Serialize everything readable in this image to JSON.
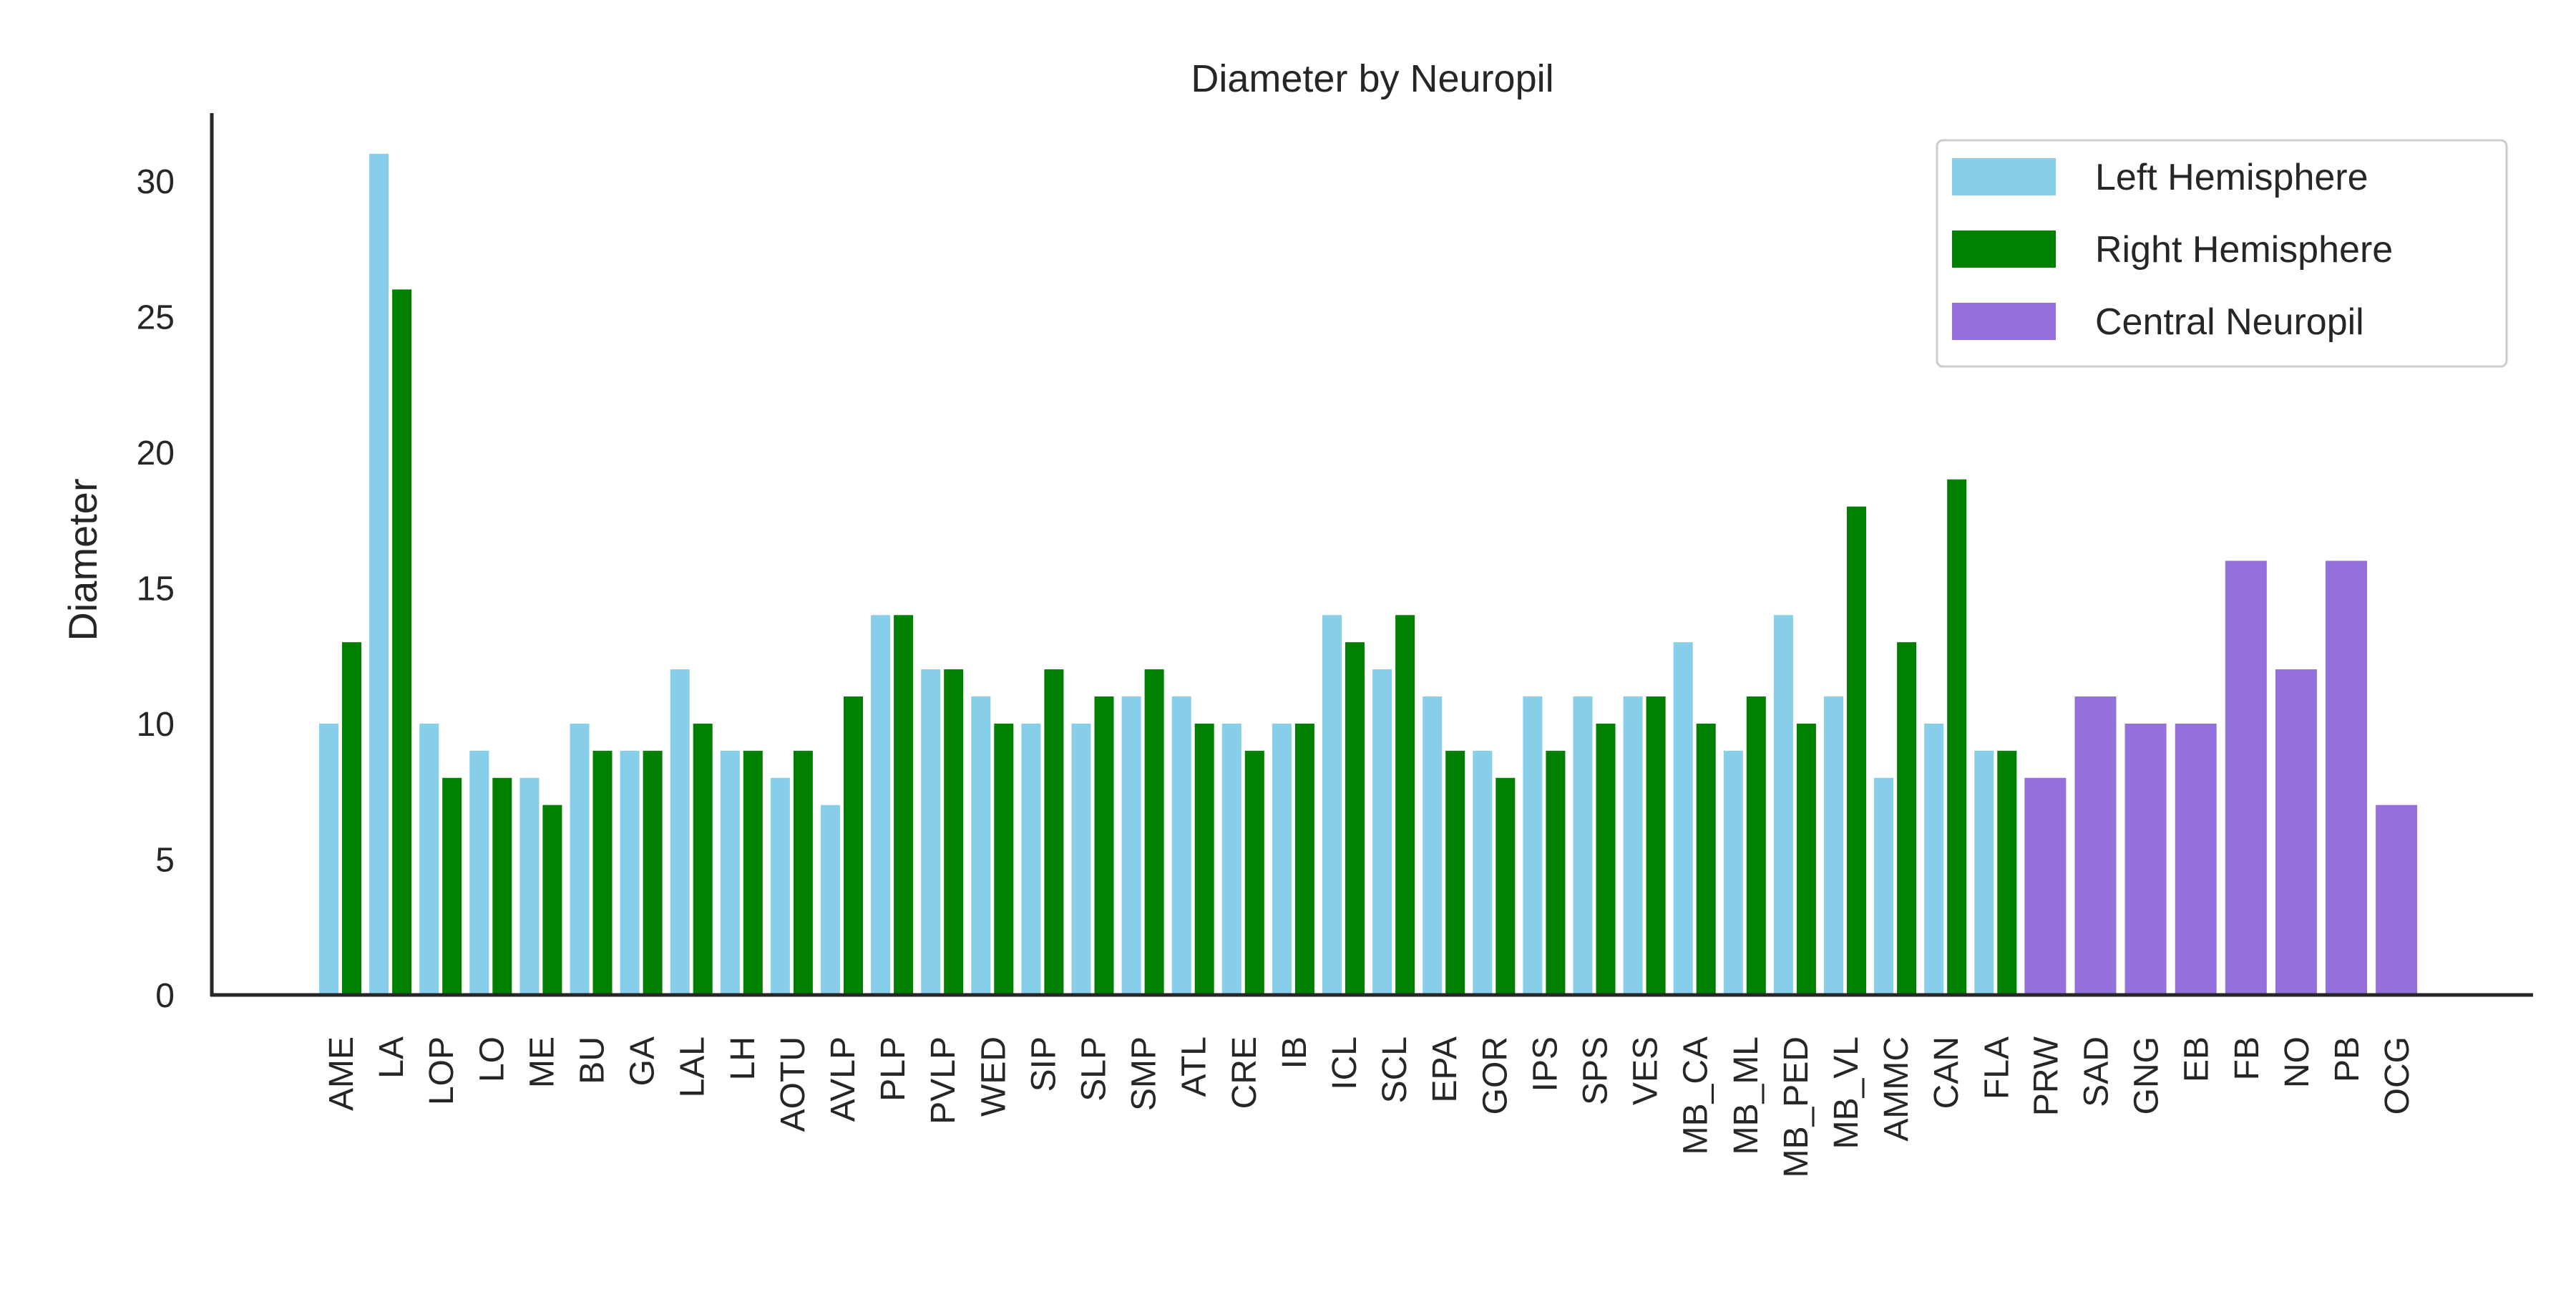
{
  "chart_data": {
    "type": "bar",
    "title": "Diameter by Neuropil",
    "xlabel": "",
    "ylabel": "Diameter",
    "ylim": [
      0,
      32.5
    ],
    "yticks": [
      0,
      5,
      10,
      15,
      20,
      25,
      30
    ],
    "grid": false,
    "legend_position": "top-right",
    "colors": {
      "left": "#87ceeb",
      "right": "#008000",
      "central": "#9370db"
    },
    "legend": [
      {
        "label": "Left Hemisphere",
        "group": "left"
      },
      {
        "label": "Right Hemisphere",
        "group": "right"
      },
      {
        "label": "Central Neuropil",
        "group": "central"
      }
    ],
    "paired": [
      {
        "label": "AME",
        "left": 10,
        "right": 13
      },
      {
        "label": "LA",
        "left": 31,
        "right": 26
      },
      {
        "label": "LOP",
        "left": 10,
        "right": 8
      },
      {
        "label": "LO",
        "left": 9,
        "right": 8
      },
      {
        "label": "ME",
        "left": 8,
        "right": 7
      },
      {
        "label": "BU",
        "left": 10,
        "right": 9
      },
      {
        "label": "GA",
        "left": 9,
        "right": 9
      },
      {
        "label": "LAL",
        "left": 12,
        "right": 10
      },
      {
        "label": "LH",
        "left": 9,
        "right": 9
      },
      {
        "label": "AOTU",
        "left": 8,
        "right": 9
      },
      {
        "label": "AVLP",
        "left": 7,
        "right": 11
      },
      {
        "label": "PLP",
        "left": 14,
        "right": 14
      },
      {
        "label": "PVLP",
        "left": 12,
        "right": 12
      },
      {
        "label": "WED",
        "left": 11,
        "right": 10
      },
      {
        "label": "SIP",
        "left": 10,
        "right": 12
      },
      {
        "label": "SLP",
        "left": 10,
        "right": 11
      },
      {
        "label": "SMP",
        "left": 11,
        "right": 12
      },
      {
        "label": "ATL",
        "left": 11,
        "right": 10
      },
      {
        "label": "CRE",
        "left": 10,
        "right": 9
      },
      {
        "label": "IB",
        "left": 10,
        "right": 10
      },
      {
        "label": "ICL",
        "left": 14,
        "right": 13
      },
      {
        "label": "SCL",
        "left": 12,
        "right": 14
      },
      {
        "label": "EPA",
        "left": 11,
        "right": 9
      },
      {
        "label": "GOR",
        "left": 9,
        "right": 8
      },
      {
        "label": "IPS",
        "left": 11,
        "right": 9
      },
      {
        "label": "SPS",
        "left": 11,
        "right": 10
      },
      {
        "label": "VES",
        "left": 11,
        "right": 11
      },
      {
        "label": "MB_CA",
        "left": 13,
        "right": 10
      },
      {
        "label": "MB_ML",
        "left": 9,
        "right": 11
      },
      {
        "label": "MB_PED",
        "left": 14,
        "right": 10
      },
      {
        "label": "MB_VL",
        "left": 11,
        "right": 18
      },
      {
        "label": "AMMC",
        "left": 8,
        "right": 13
      },
      {
        "label": "CAN",
        "left": 10,
        "right": 19
      },
      {
        "label": "FLA",
        "left": 9,
        "right": 9
      }
    ],
    "central": [
      {
        "label": "PRW",
        "value": 8
      },
      {
        "label": "SAD",
        "value": 11
      },
      {
        "label": "GNG",
        "value": 10
      },
      {
        "label": "EB",
        "value": 10
      },
      {
        "label": "FB",
        "value": 16
      },
      {
        "label": "NO",
        "value": 12
      },
      {
        "label": "PB",
        "value": 16
      },
      {
        "label": "OCG",
        "value": 7
      }
    ]
  }
}
